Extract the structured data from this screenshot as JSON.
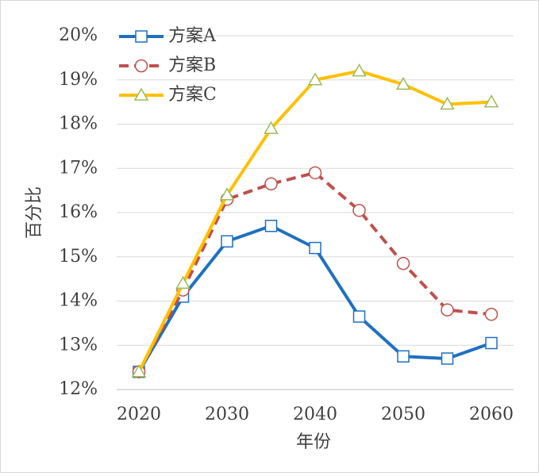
{
  "chart_data": {
    "type": "line",
    "x": [
      2020,
      2025,
      2030,
      2035,
      2040,
      2045,
      2050,
      2055,
      2060
    ],
    "series": [
      {
        "name": "方案A",
        "color": "#1f70c1",
        "marker": "square",
        "dash": false,
        "values": [
          12.4,
          14.1,
          15.35,
          15.7,
          15.2,
          13.65,
          12.75,
          12.7,
          13.05
        ]
      },
      {
        "name": "方案B",
        "color": "#c0504d",
        "marker": "circle",
        "dash": true,
        "values": [
          12.4,
          14.25,
          16.3,
          16.65,
          16.9,
          16.05,
          14.85,
          13.8,
          13.7
        ]
      },
      {
        "name": "方案C",
        "color": "#ffc000",
        "marker": "triangle",
        "dash": false,
        "values": [
          12.4,
          14.4,
          16.4,
          17.9,
          19.0,
          19.2,
          18.9,
          18.45,
          18.5
        ]
      }
    ],
    "xlabel": "年份",
    "ylabel": "百分比",
    "xlim": [
      2020,
      2060
    ],
    "xticks": [
      2020,
      2030,
      2040,
      2050,
      2060
    ],
    "ylim": [
      12,
      20
    ],
    "yticks": [
      {
        "value": 12,
        "label": "12%"
      },
      {
        "value": 13,
        "label": "13%"
      },
      {
        "value": 14,
        "label": "14%"
      },
      {
        "value": 15,
        "label": "15%"
      },
      {
        "value": 16,
        "label": "16%"
      },
      {
        "value": 17,
        "label": "17%"
      },
      {
        "value": 18,
        "label": "18%"
      },
      {
        "value": 19,
        "label": "19%"
      },
      {
        "value": 20,
        "label": "20%"
      }
    ],
    "grid": true,
    "legend": "upper left"
  }
}
